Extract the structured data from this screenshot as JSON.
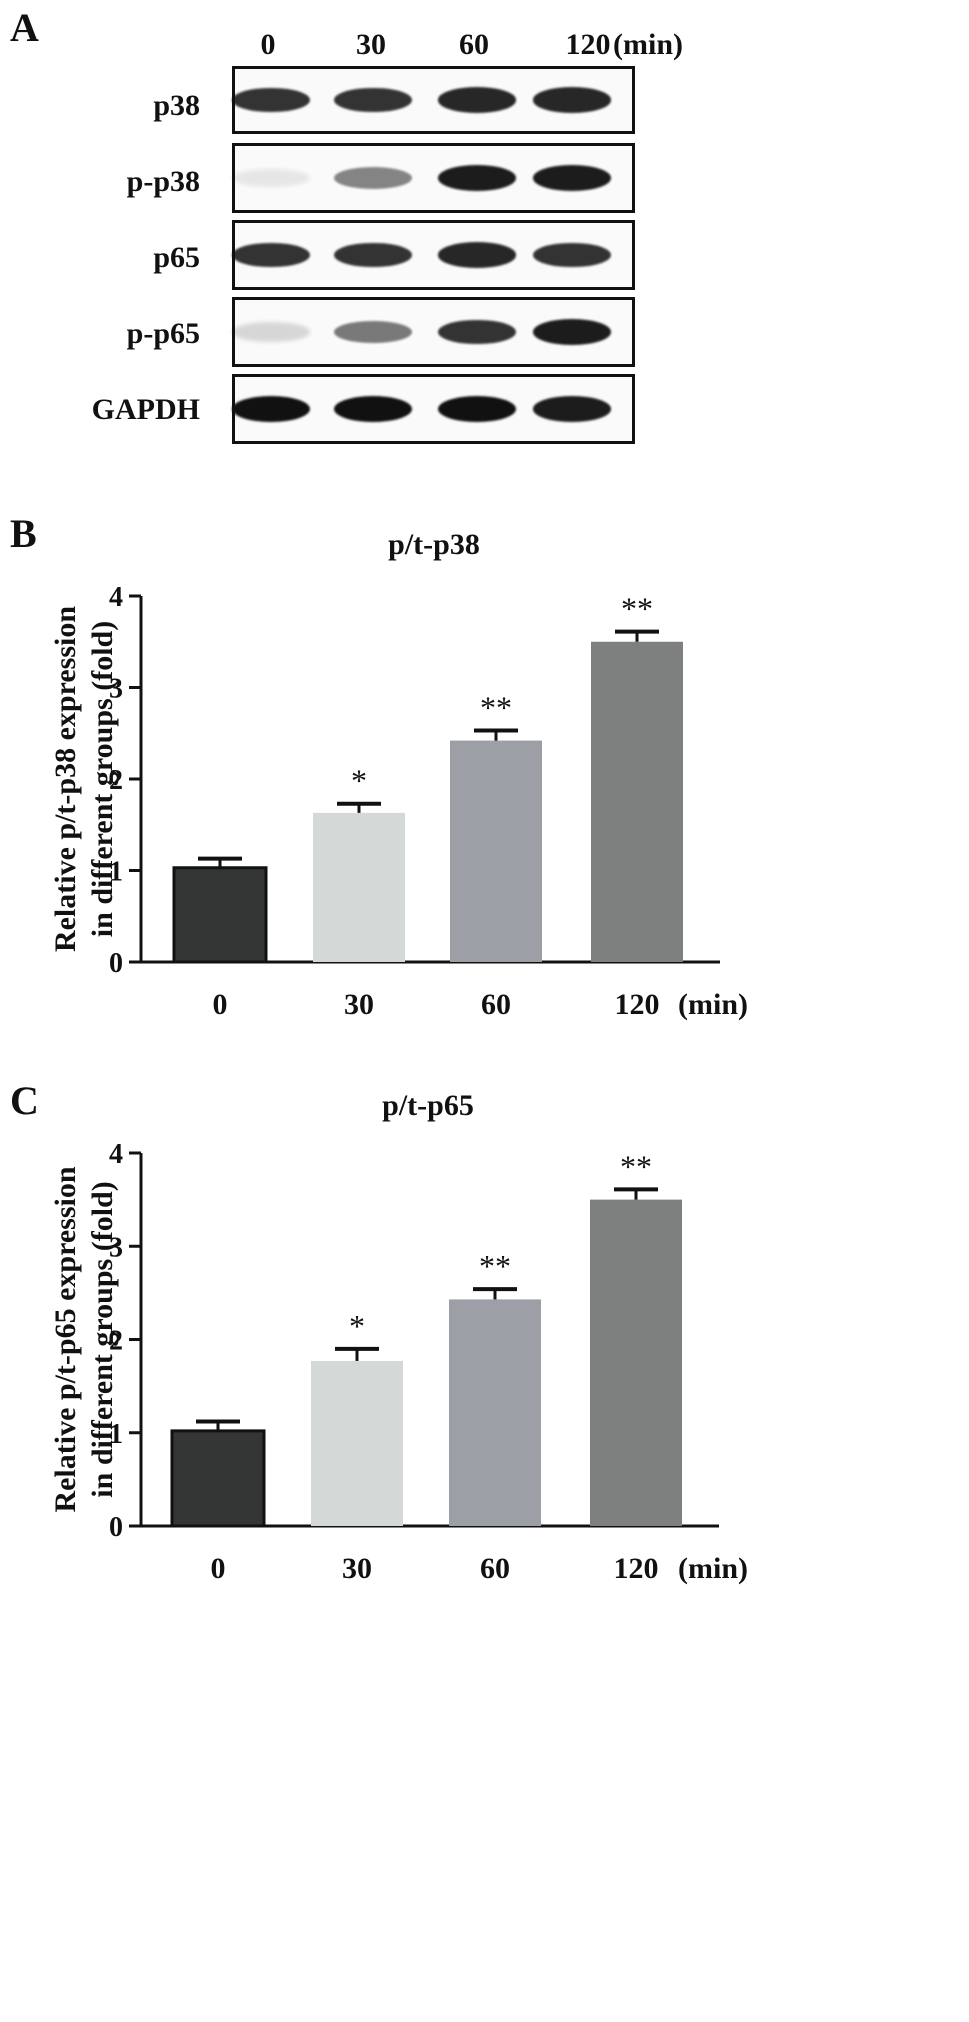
{
  "panel_a": {
    "letter": "A",
    "lanes": [
      "0",
      "30",
      "60",
      "120"
    ],
    "unit": "(min)",
    "blots": [
      {
        "label": "p38",
        "band_intensity": [
          0.85,
          0.85,
          0.9,
          0.9
        ]
      },
      {
        "label": "p-p38",
        "band_intensity": [
          0.08,
          0.5,
          0.95,
          0.95
        ]
      },
      {
        "label": "p65",
        "band_intensity": [
          0.85,
          0.85,
          0.9,
          0.85
        ]
      },
      {
        "label": "p-p65",
        "band_intensity": [
          0.15,
          0.55,
          0.85,
          0.95
        ]
      },
      {
        "label": "GAPDH",
        "band_intensity": [
          1.0,
          1.0,
          1.0,
          0.95
        ]
      }
    ]
  },
  "chart_data": [
    {
      "type": "bar",
      "letter": "B",
      "title": "p/t-p38",
      "ylabel_line1": "Relative p/t-p38 expression",
      "ylabel_line2": "in different groups (fold)",
      "xunit": "(min)",
      "categories": [
        "0",
        "30",
        "60",
        "120"
      ],
      "values": [
        1.03,
        1.63,
        2.42,
        3.5
      ],
      "errors": [
        0.1,
        0.1,
        0.11,
        0.11
      ],
      "significance": [
        "",
        "*",
        "**",
        "**"
      ],
      "colors": [
        "#333635",
        "#d4d9d8",
        "#9c9fa6",
        "#7e807f"
      ],
      "ylim": [
        0,
        4
      ],
      "yticks": [
        "0",
        "1",
        "2",
        "3",
        "4"
      ],
      "grid": false
    },
    {
      "type": "bar",
      "letter": "C",
      "title": "p/t-p65",
      "ylabel_line1": "Relative p/t-p65 expression",
      "ylabel_line2": "in different groups (fold)",
      "xunit": "(min)",
      "categories": [
        "0",
        "30",
        "60",
        "120"
      ],
      "values": [
        1.02,
        1.77,
        2.43,
        3.5
      ],
      "errors": [
        0.1,
        0.13,
        0.11,
        0.11
      ],
      "significance": [
        "",
        "*",
        "**",
        "**"
      ],
      "colors": [
        "#333635",
        "#d4d9d8",
        "#9c9fa6",
        "#7e807f"
      ],
      "ylim": [
        0,
        4
      ],
      "yticks": [
        "0",
        "1",
        "2",
        "3",
        "4"
      ],
      "grid": false
    }
  ]
}
